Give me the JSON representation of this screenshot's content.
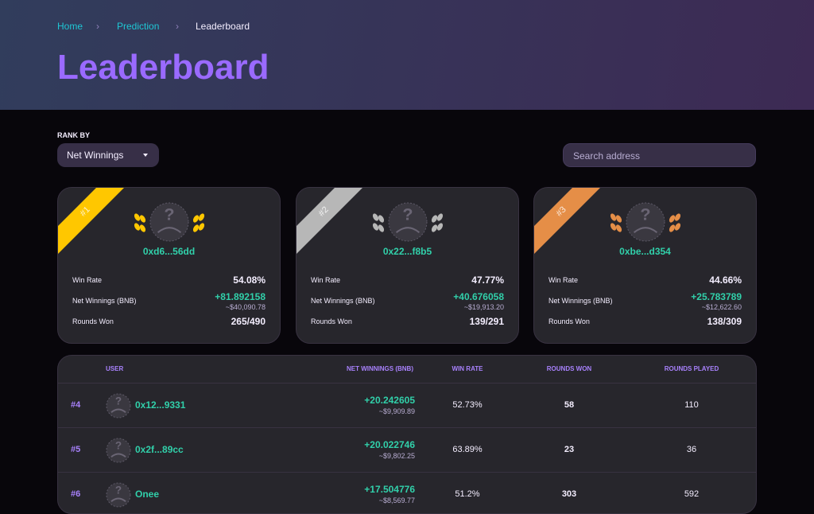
{
  "breadcrumb": [
    "Home",
    "Prediction",
    "Leaderboard"
  ],
  "title": "Leaderboard",
  "rank_by": {
    "label": "RANK BY",
    "value": "Net Winnings"
  },
  "search_placeholder": "Search address",
  "podium": [
    {
      "rank": "#1",
      "address": "0xd6...56dd",
      "win_rate_label": "Win Rate",
      "win_rate": "54.08%",
      "net_label": "Net Winnings (BNB)",
      "net": "+81.892158",
      "net_usd": "~$40,090.78",
      "rounds_label": "Rounds Won",
      "rounds": "265/490"
    },
    {
      "rank": "#2",
      "address": "0x22...f8b5",
      "win_rate_label": "Win Rate",
      "win_rate": "47.77%",
      "net_label": "Net Winnings (BNB)",
      "net": "+40.676058",
      "net_usd": "~$19,913.20",
      "rounds_label": "Rounds Won",
      "rounds": "139/291"
    },
    {
      "rank": "#3",
      "address": "0xbe...d354",
      "win_rate_label": "Win Rate",
      "win_rate": "44.66%",
      "net_label": "Net Winnings (BNB)",
      "net": "+25.783789",
      "net_usd": "~$12,622.60",
      "rounds_label": "Rounds Won",
      "rounds": "138/309"
    }
  ],
  "table": {
    "headers": [
      "USER",
      "NET WINNINGS (BNB)",
      "WIN RATE",
      "ROUNDS WON",
      "ROUNDS PLAYED"
    ],
    "rows": [
      {
        "rank": "#4",
        "user": "0x12...9331",
        "net": "+20.242605",
        "net_usd": "~$9,909.89",
        "win_rate": "52.73%",
        "rounds_won": "58",
        "rounds_played": "110"
      },
      {
        "rank": "#5",
        "user": "0x2f...89cc",
        "net": "+20.022746",
        "net_usd": "~$9,802.25",
        "win_rate": "63.89%",
        "rounds_won": "23",
        "rounds_played": "36"
      },
      {
        "rank": "#6",
        "user": "Onee",
        "net": "+17.504776",
        "net_usd": "~$8,569.77",
        "win_rate": "51.2%",
        "rounds_won": "303",
        "rounds_played": "592"
      }
    ]
  }
}
